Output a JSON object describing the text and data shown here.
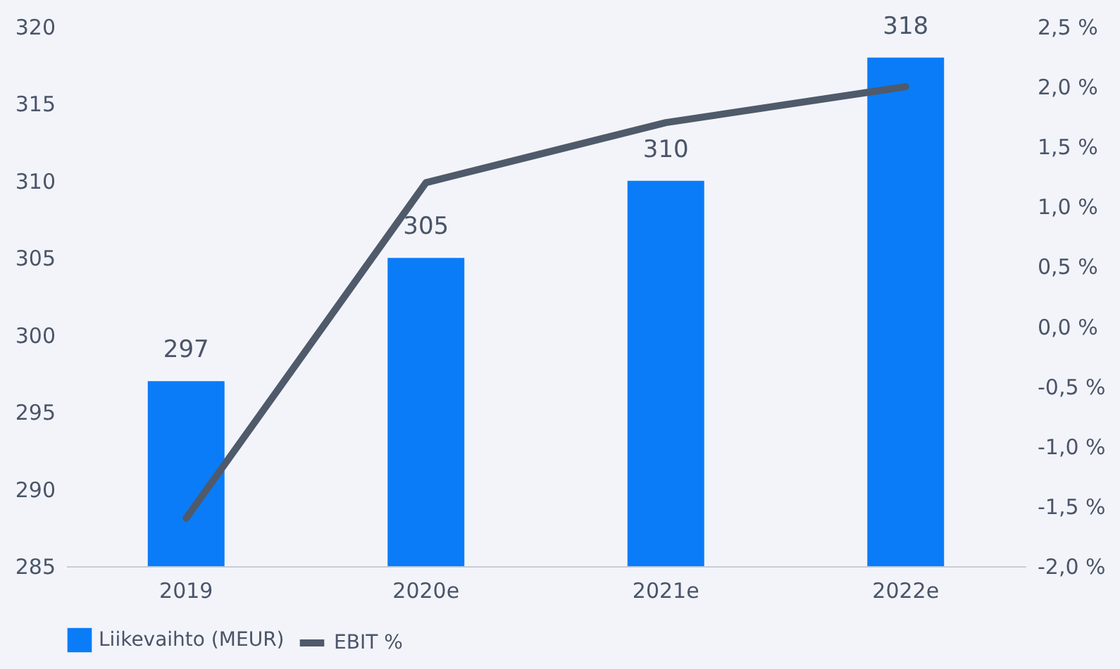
{
  "chart_data": {
    "type": "bar",
    "categories": [
      "2019",
      "2020e",
      "2021e",
      "2022e"
    ],
    "series": [
      {
        "name": "Liikevaihto (MEUR)",
        "color": "#0a7cf8",
        "values": [
          297,
          305,
          310,
          318
        ],
        "value_labels": [
          "297",
          "305",
          "310",
          "318"
        ]
      },
      {
        "name": "EBIT %",
        "type": "line",
        "axis": "y2",
        "color": "#4f5a6b",
        "values": [
          -1.6,
          1.2,
          1.7,
          2.0
        ]
      }
    ],
    "ylim": [
      285,
      320
    ],
    "yticks": [
      285,
      290,
      295,
      300,
      305,
      310,
      315,
      320
    ],
    "y2lim": [
      -2.0,
      2.5
    ],
    "y2ticks": [
      {
        "value": -2.0,
        "label": "-2,0 %"
      },
      {
        "value": -1.5,
        "label": "-1,5 %"
      },
      {
        "value": -1.0,
        "label": "-1,0 %"
      },
      {
        "value": -0.5,
        "label": "-0,5 %"
      },
      {
        "value": 0.0,
        "label": "0,0 %"
      },
      {
        "value": 0.5,
        "label": "0,5 %"
      },
      {
        "value": 1.0,
        "label": "1,0 %"
      },
      {
        "value": 1.5,
        "label": "1,5 %"
      },
      {
        "value": 2.0,
        "label": "2,0 %"
      },
      {
        "value": 2.5,
        "label": "2,5 %"
      }
    ],
    "legend": "bottom",
    "grid": false,
    "marker": "none",
    "line_style": "solid"
  }
}
